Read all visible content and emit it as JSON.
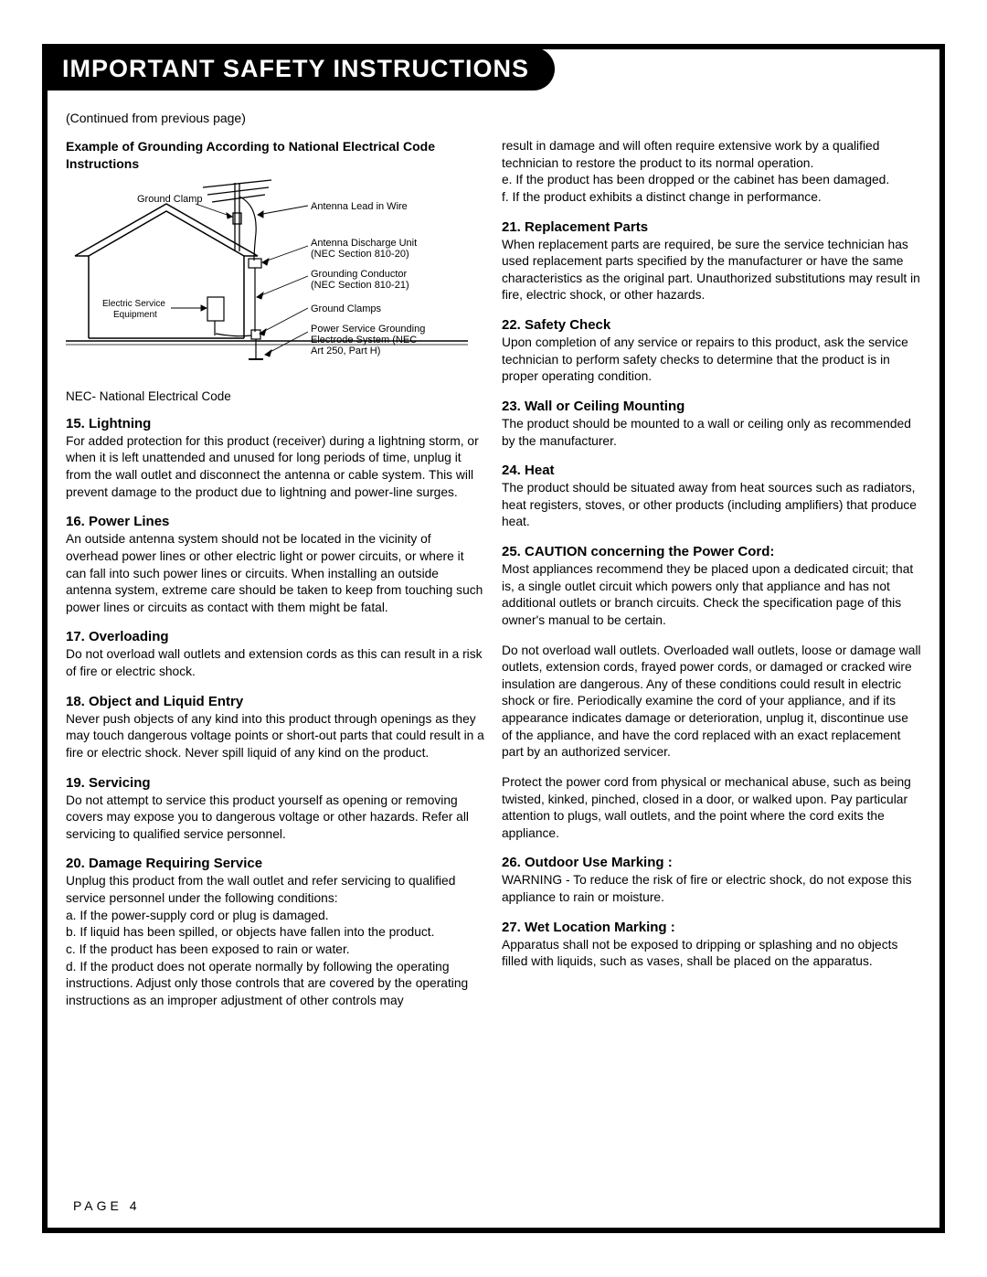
{
  "title": "IMPORTANT SAFETY INSTRUCTIONS",
  "continued": "(Continued from previous page)",
  "diagram": {
    "title": "Example of Grounding According to National Electrical Code Instructions",
    "labels": {
      "ground_clamp": "Ground Clamp",
      "antenna_lead": "Antenna Lead in Wire",
      "discharge_unit_1": "Antenna Discharge Unit",
      "discharge_unit_2": "(NEC Section 810-20)",
      "grounding_cond_1": "Grounding Conductor",
      "grounding_cond_2": "(NEC Section 810-21)",
      "electric_service_1": "Electric Service",
      "electric_service_2": "Equipment",
      "ground_clamps": "Ground Clamps",
      "power_service_1": "Power Service Grounding",
      "power_service_2": "Electrode System (NEC",
      "power_service_3": "Art 250, Part H)"
    },
    "nec_note": "NEC- National Electrical Code",
    "colors": {
      "stroke": "#000000",
      "text": "#000000"
    },
    "label_fontsize": 11,
    "inner_label_fontsize": 10
  },
  "left_sections": [
    {
      "heading": "15. Lightning",
      "body": "For added protection for this product (receiver) during a lightning storm, or when it is left unattended and unused for long periods of time, unplug it from the wall outlet and disconnect the antenna or cable system. This will prevent damage to the product due to lightning and power-line surges."
    },
    {
      "heading": "16. Power Lines",
      "body": "An outside antenna system should not be located in the vicinity of overhead power lines or other electric light or power circuits, or where it can fall into such power lines or circuits. When installing an outside antenna system, extreme care should be taken to keep from touching such power lines or circuits as contact with them might be fatal."
    },
    {
      "heading": "17. Overloading",
      "body": "Do not overload wall outlets and extension cords as this can result in a risk of fire or electric shock."
    },
    {
      "heading": "18. Object and Liquid Entry",
      "body": "Never push objects of any kind into this product through openings as they may touch dangerous voltage points or short-out parts that could result in a fire or electric shock. Never spill liquid of any kind on the product."
    },
    {
      "heading": "19. Servicing",
      "body": "Do not attempt to service this product yourself as opening or removing covers may expose you to dangerous voltage or other hazards. Refer all servicing to qualified service personnel."
    },
    {
      "heading": "20. Damage Requiring Service",
      "body": "Unplug this product from the wall outlet and refer servicing to qualified service personnel under the following conditions:",
      "subs": [
        "a. If the power-supply cord or plug is damaged.",
        "b. If liquid has been spilled, or objects have fallen into the product.",
        "c. If the product has been exposed to rain or water.",
        "d. If the product does not operate normally by following the operating instructions. Adjust only those controls that are covered by the operating instructions as an improper adjustment of other controls may"
      ]
    }
  ],
  "right_intro": [
    "result in damage and will often require extensive work by a qualified technician to restore the product to its normal operation.",
    "e. If the product has been dropped or the cabinet has been damaged.",
    "f. If the product exhibits a distinct change in performance."
  ],
  "right_sections": [
    {
      "heading": "21. Replacement Parts",
      "body": "When replacement parts are required, be sure the service technician has used replacement parts specified by the manufacturer or have the same characteristics as the original part. Unauthorized substitutions may result in fire, electric shock, or other hazards."
    },
    {
      "heading": "22. Safety Check",
      "body": "Upon completion of any service or repairs to this product, ask the service technician to perform safety checks to determine that the product is in proper operating condition."
    },
    {
      "heading": "23. Wall or Ceiling Mounting",
      "body": "The product should be mounted to a wall or ceiling only as recommended by the manufacturer."
    },
    {
      "heading": "24. Heat",
      "body": "The product should be situated away from heat sources such as radiators, heat registers, stoves, or other products (including amplifiers) that produce heat."
    },
    {
      "heading": "25. CAUTION concerning the Power Cord:",
      "paras": [
        "Most appliances recommend they be placed upon a dedicated circuit; that is, a single outlet circuit which powers only that appliance and has not additional outlets or branch circuits. Check the specification page of this owner's manual to be certain.",
        "Do not overload wall outlets. Overloaded  wall outlets, loose or damage wall outlets, extension cords, frayed power cords, or damaged or cracked wire insulation are dangerous. Any of these conditions could result in electric shock or fire. Periodically examine the cord of your appliance, and if its appearance indicates damage or deterioration, unplug it, discontinue use of the appliance, and have the cord replaced with an exact replacement part by an authorized servicer.",
        "Protect the power cord from physical or mechanical abuse, such as being twisted, kinked, pinched, closed in a door, or walked upon. Pay particular attention to plugs, wall outlets, and the point where the cord exits the appliance."
      ]
    },
    {
      "heading": "26. Outdoor Use Marking :",
      "body": "WARNING - To reduce the risk of fire or electric shock, do not expose this appliance to rain or moisture."
    },
    {
      "heading": "27. Wet Location Marking :",
      "body": "Apparatus shall not be exposed to dripping or splashing and no objects filled with liquids, such as vases, shall be placed on the apparatus."
    }
  ],
  "page_number": "PAGE 4"
}
